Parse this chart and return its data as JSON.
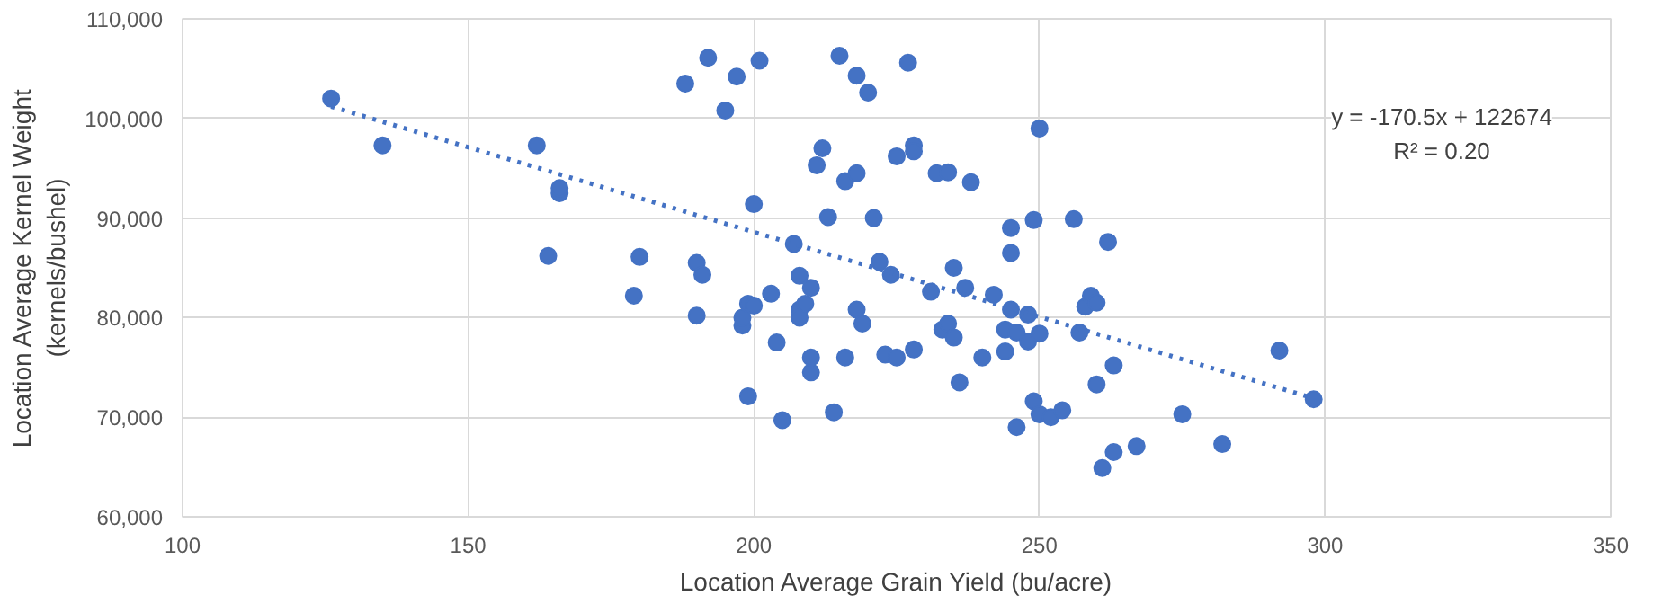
{
  "chart_data": {
    "type": "scatter",
    "xlabel": "Location Average Grain Yield (bu/acre)",
    "ylabel": "Location Average Kernel Weight\n(kernels/bushel)",
    "xlim": [
      100,
      350
    ],
    "xticks": [
      100,
      150,
      200,
      250,
      300,
      350
    ],
    "ylim": [
      60000,
      110000
    ],
    "yticks": [
      {
        "value": 60000,
        "label": "60,000"
      },
      {
        "value": 70000,
        "label": "70,000"
      },
      {
        "value": 80000,
        "label": "80,000"
      },
      {
        "value": 90000,
        "label": "90,000"
      },
      {
        "value": 100000,
        "label": "100,000"
      },
      {
        "value": 110000,
        "label": "110,000"
      }
    ],
    "grid": true,
    "marker": "circle",
    "annotations": [
      "y = -170.5x + 122674",
      "R² = 0.20"
    ],
    "series": [
      {
        "color": "#4472c4",
        "x": [
          126,
          135,
          162,
          164,
          166,
          166,
          179,
          180,
          190,
          191,
          190,
          188,
          192,
          195,
          197,
          198,
          198,
          199,
          199,
          200,
          200,
          201,
          203,
          204,
          205,
          207,
          208,
          208,
          208,
          209,
          210,
          210,
          210,
          211,
          212,
          213,
          214,
          215,
          216,
          216,
          218,
          218,
          218,
          219,
          220,
          221,
          222,
          223,
          224,
          225,
          225,
          227,
          228,
          228,
          228,
          232,
          231,
          233,
          234,
          234,
          235,
          235,
          236,
          237,
          238,
          240,
          242,
          244,
          244,
          245,
          245,
          245,
          246,
          246,
          248,
          248,
          250,
          249,
          250,
          249,
          250,
          252,
          254,
          256,
          257,
          258,
          259,
          260,
          260,
          261,
          262,
          263,
          263,
          267,
          275,
          282,
          292,
          298
        ],
        "values": [
          102000,
          97300,
          97300,
          86200,
          92500,
          93000,
          82200,
          86100,
          85500,
          84300,
          80200,
          103500,
          106100,
          100800,
          104200,
          79200,
          80000,
          81400,
          72100,
          91400,
          81200,
          105800,
          82400,
          77500,
          69700,
          87400,
          84200,
          80800,
          80000,
          81400,
          74500,
          76000,
          83000,
          95300,
          97000,
          90100,
          70500,
          106300,
          93700,
          76000,
          94500,
          104300,
          80800,
          79400,
          102600,
          90000,
          85600,
          76300,
          84300,
          76000,
          96200,
          105600,
          97300,
          76800,
          96700,
          94500,
          82600,
          78800,
          79400,
          94600,
          85000,
          78000,
          73500,
          83000,
          93600,
          76000,
          82300,
          76600,
          78800,
          89000,
          86500,
          80800,
          69000,
          78500,
          80300,
          77600,
          99000,
          89800,
          78400,
          71600,
          70300,
          70000,
          70700,
          89900,
          78500,
          81100,
          82200,
          81500,
          73300,
          64900,
          87600,
          75200,
          66500,
          67100,
          70300,
          67300,
          76700,
          71800
        ]
      },
      {
        "type": "line",
        "color": "#4472c4",
        "line_style": "dotted",
        "marker": "none",
        "x": [
          126,
          298
        ],
        "values": [
          101200,
          71900
        ]
      }
    ]
  }
}
